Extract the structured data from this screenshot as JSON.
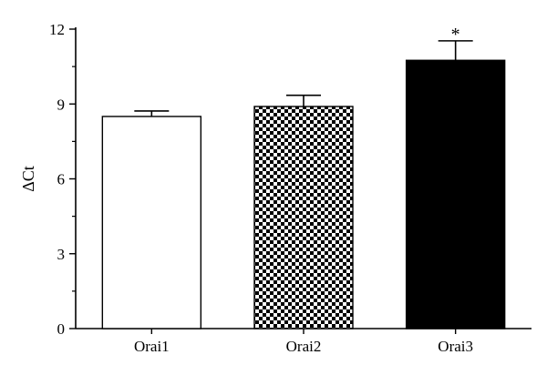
{
  "chart_data": {
    "type": "bar",
    "categories": [
      "Orai1",
      "Orai2",
      "Orai3"
    ],
    "values": [
      8.5,
      8.9,
      10.75
    ],
    "errors": [
      0.22,
      0.45,
      0.78
    ],
    "annotations": [
      "",
      "",
      "*"
    ],
    "fills": [
      "white",
      "checker",
      "black"
    ],
    "ylabel": "ΔCt",
    "xlabel": "",
    "ylim": [
      0,
      12
    ],
    "yticks": [
      0,
      3,
      6,
      9,
      12
    ],
    "grid": false
  }
}
